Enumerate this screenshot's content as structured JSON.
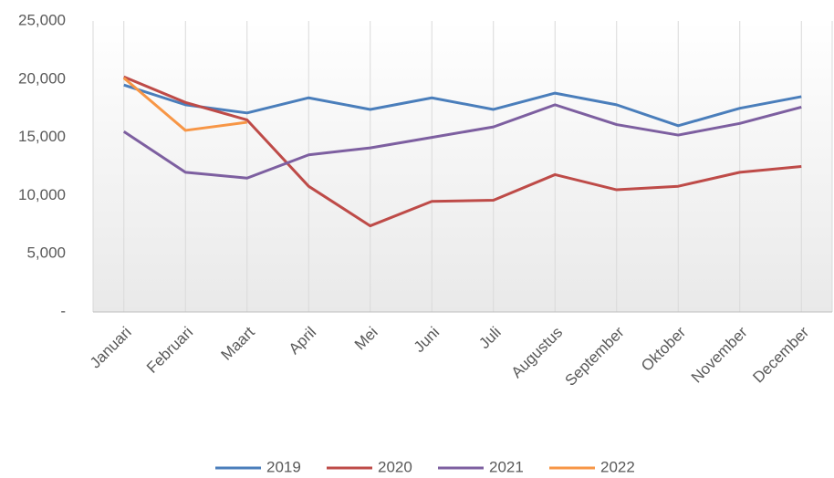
{
  "chart_data": {
    "type": "line",
    "categories": [
      "Januari",
      "Februari",
      "Maart",
      "April",
      "Mei",
      "Juni",
      "Juli",
      "Augustus",
      "September",
      "Oktober",
      "November",
      "December"
    ],
    "series": [
      {
        "name": "2019",
        "color": "#4a7ebb",
        "values": [
          19500,
          17800,
          17100,
          18400,
          17400,
          18400,
          17400,
          18800,
          17800,
          16000,
          17500,
          18500
        ]
      },
      {
        "name": "2020",
        "color": "#be4b48",
        "values": [
          20200,
          18000,
          16500,
          10800,
          7400,
          9500,
          9600,
          11800,
          10500,
          10800,
          12000,
          12500
        ]
      },
      {
        "name": "2021",
        "color": "#7d5fa0",
        "values": [
          15500,
          12000,
          11500,
          13500,
          14100,
          15000,
          15900,
          17800,
          16100,
          15200,
          16200,
          17600
        ]
      },
      {
        "name": "2022",
        "color": "#f79646",
        "values": [
          20100,
          15600,
          16300,
          null,
          null,
          null,
          null,
          null,
          null,
          null,
          null,
          null
        ]
      }
    ],
    "ylim": [
      0,
      25000
    ],
    "yticks": [
      {
        "value": 0,
        "label": "-"
      },
      {
        "value": 5000,
        "label": "5,000"
      },
      {
        "value": 10000,
        "label": "10,000"
      },
      {
        "value": 15000,
        "label": "15,000"
      },
      {
        "value": 20000,
        "label": "20,000"
      },
      {
        "value": 25000,
        "label": "25,000"
      }
    ],
    "grid": {
      "x": true,
      "y": false
    },
    "legend": "bottom"
  }
}
